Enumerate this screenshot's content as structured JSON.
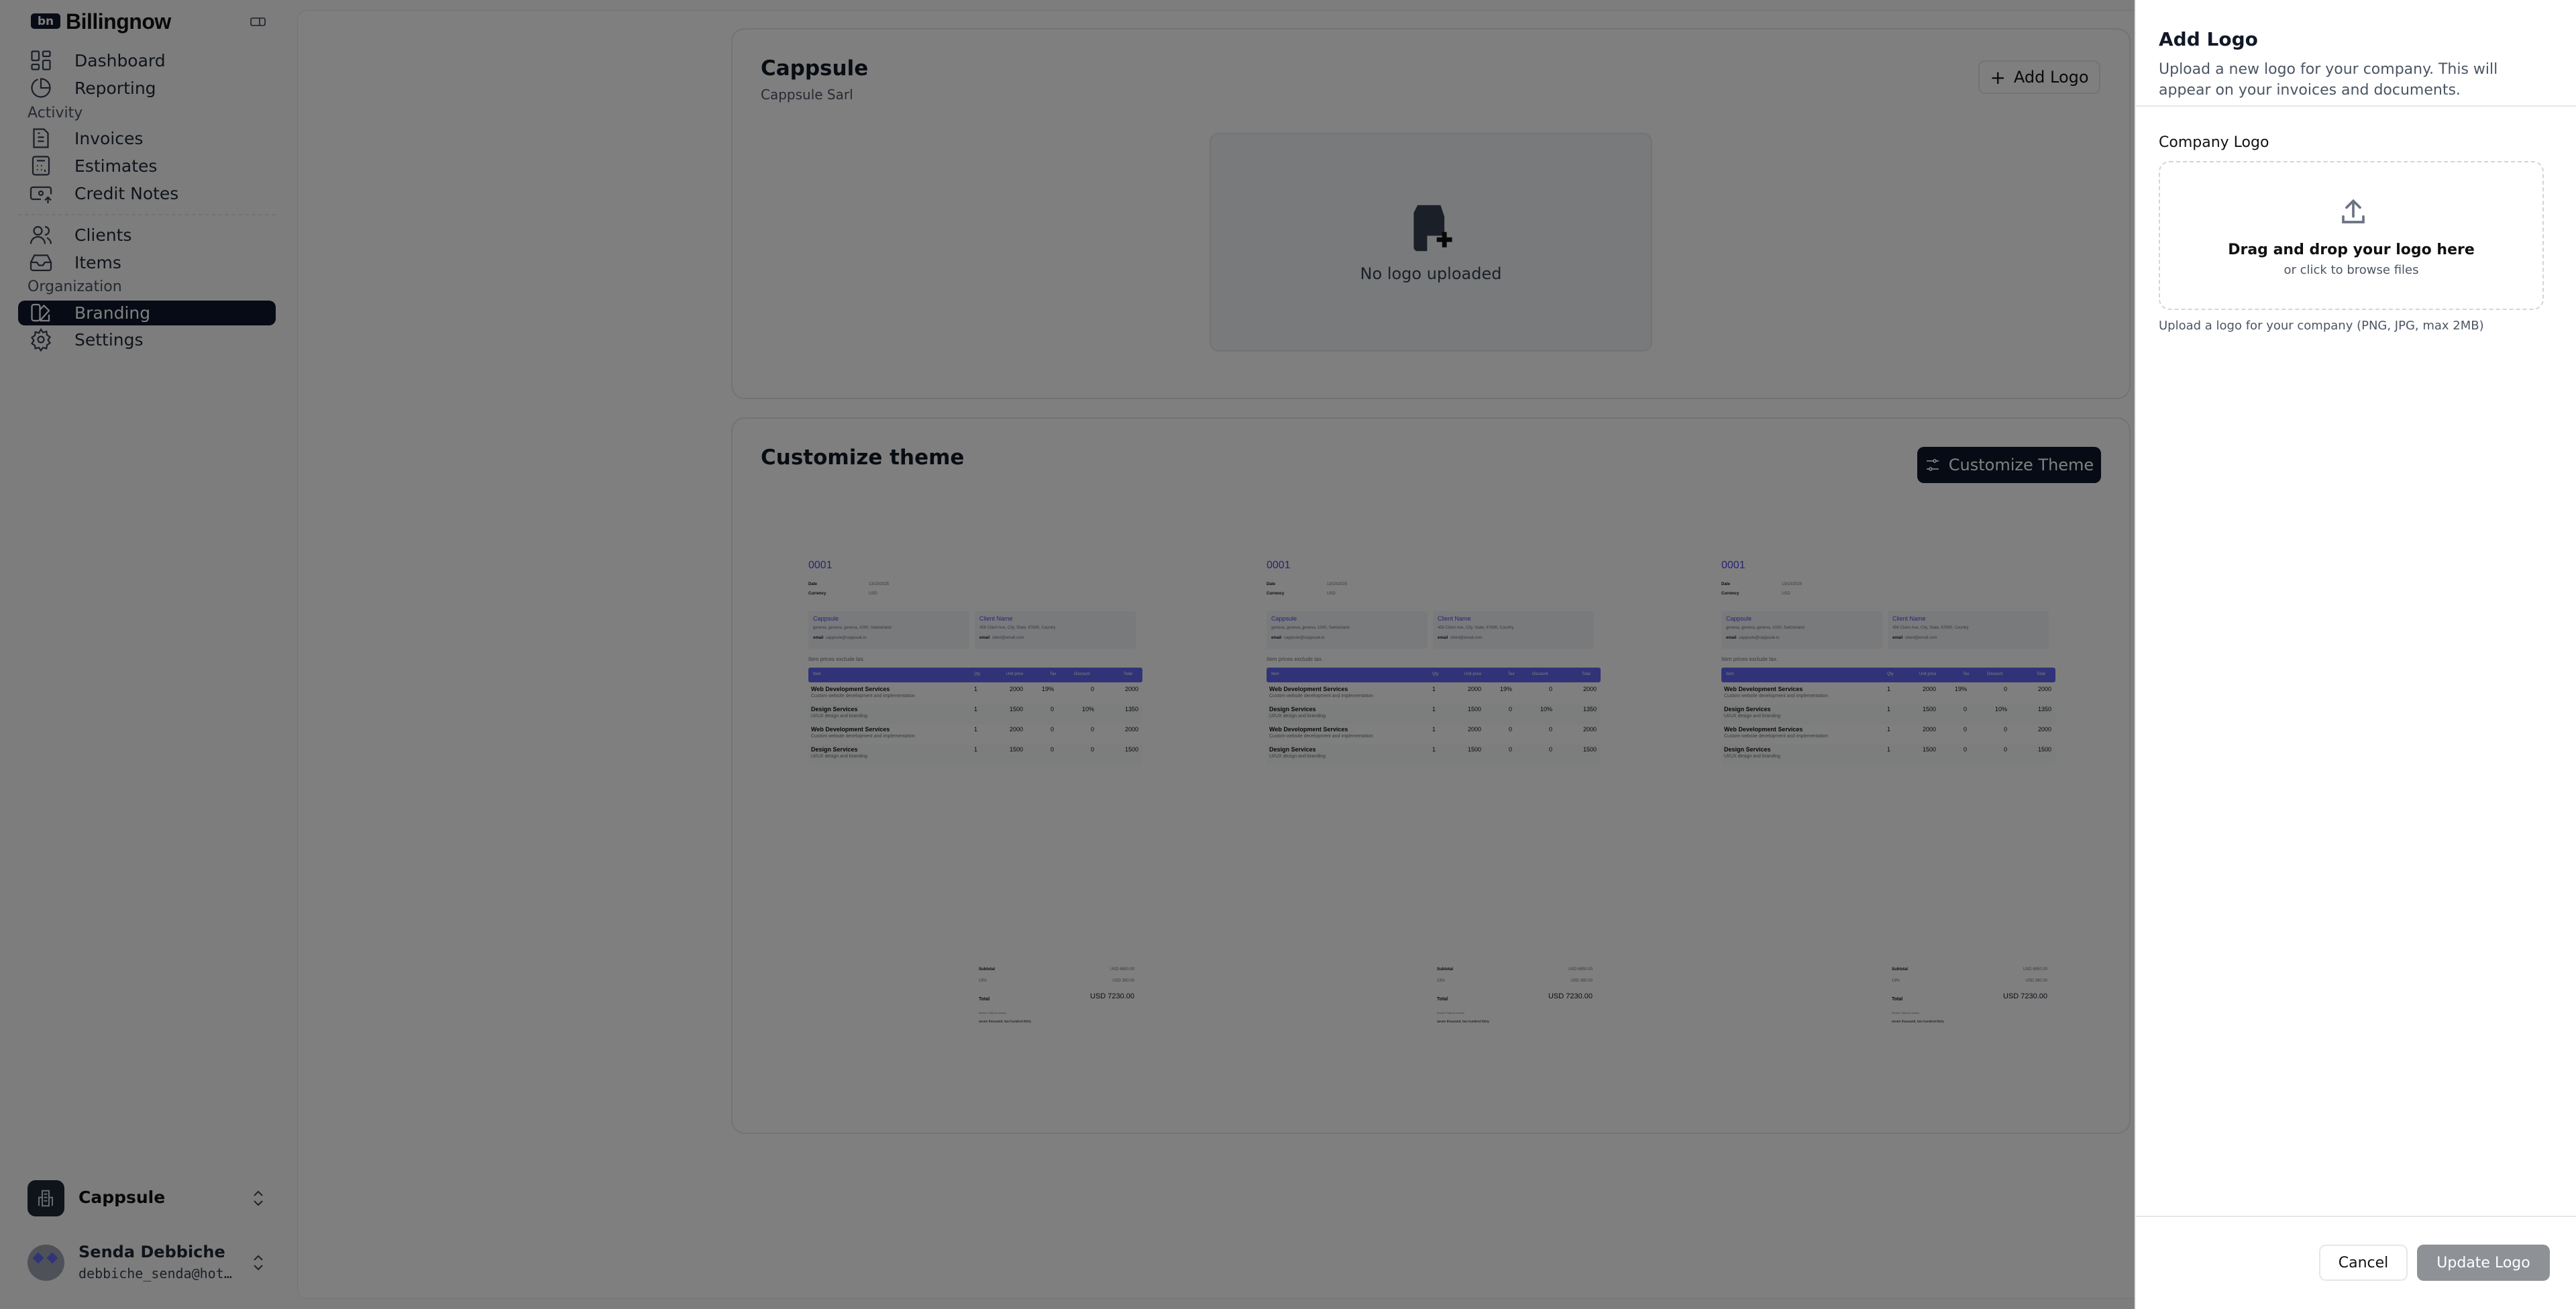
{
  "app": {
    "brand": "Billingnow",
    "logo_mark": "bn"
  },
  "sidebar": {
    "items": [
      {
        "label": "Dashboard",
        "icon": "dashboard-icon"
      },
      {
        "label": "Reporting",
        "icon": "pie-chart-icon"
      },
      {
        "label": "Invoices",
        "icon": "file-text-icon"
      },
      {
        "label": "Estimates",
        "icon": "calculator-icon"
      },
      {
        "label": "Credit Notes",
        "icon": "banknote-icon"
      },
      {
        "label": "Clients",
        "icon": "users-icon"
      },
      {
        "label": "Items",
        "icon": "inbox-icon"
      },
      {
        "label": "Branding",
        "icon": "swatch-book-icon",
        "active": true
      },
      {
        "label": "Settings",
        "icon": "gear-icon"
      }
    ],
    "sections": {
      "activity": "Activity",
      "organization": "Organization"
    },
    "workspace": {
      "name": "Cappsule"
    },
    "user": {
      "name": "Senda Debbiche",
      "email": "debbiche_senda@hot…"
    }
  },
  "company": {
    "name": "Cappsule",
    "legal_name": "Cappsule Sarl",
    "add_logo_label": "Add Logo",
    "no_logo_text": "No logo uploaded"
  },
  "theme": {
    "title": "Customize theme",
    "button_label": "Customize Theme"
  },
  "invoice": {
    "number": "0001",
    "date_label": "Date",
    "date": "13/10/2025",
    "currency_label": "Currency",
    "currency": "USD",
    "from": {
      "name": "Cappsule",
      "address": "geneva, geneva, geneva, 1000, Switzerland",
      "email_label": "email",
      "email": "cappsule@cappsule.io"
    },
    "to": {
      "name": "Client Name",
      "address": "456 Client Ave, City, State, 67890, Country",
      "email_label": "email",
      "email": "client@email.com"
    },
    "note": "Item prices exclude tax.",
    "columns": [
      "Item",
      "Qty",
      "Unit price",
      "Tax",
      "Discount",
      "Total"
    ],
    "rows": [
      {
        "name": "Web Development Services",
        "desc": "Custom website development and implementation",
        "qty": "1",
        "unit": "2000",
        "tax": "19%",
        "discount": "0",
        "total": "2000"
      },
      {
        "name": "Design Services",
        "desc": "UI/UX design and branding",
        "qty": "1",
        "unit": "1500",
        "tax": "0",
        "discount": "10%",
        "total": "1350"
      },
      {
        "name": "Web Development Services",
        "desc": "Custom website development and implementation",
        "qty": "1",
        "unit": "2000",
        "tax": "0",
        "discount": "0",
        "total": "2000"
      },
      {
        "name": "Design Services",
        "desc": "UI/UX design and branding",
        "qty": "1",
        "unit": "1500",
        "tax": "0",
        "discount": "0",
        "total": "1500"
      }
    ],
    "subtotal_label": "Subtotal",
    "subtotal": "USD 6850.00",
    "tax_label": "19%",
    "tax": "USD 380.00",
    "total_label": "Total",
    "total": "USD 7230.00",
    "words_label": "Invoice Total (in words)",
    "words": "seven thousand, two hundred thirty",
    "accent": "#6366f1"
  },
  "panel": {
    "title": "Add Logo",
    "description": "Upload a new logo for your company. This will appear on your invoices and documents.",
    "field_label": "Company Logo",
    "drop_title": "Drag and drop your logo here",
    "drop_sub": "or click to browse files",
    "help": "Upload a logo for your company (PNG, JPG, max 2MB)",
    "cancel_label": "Cancel",
    "submit_label": "Update Logo"
  }
}
